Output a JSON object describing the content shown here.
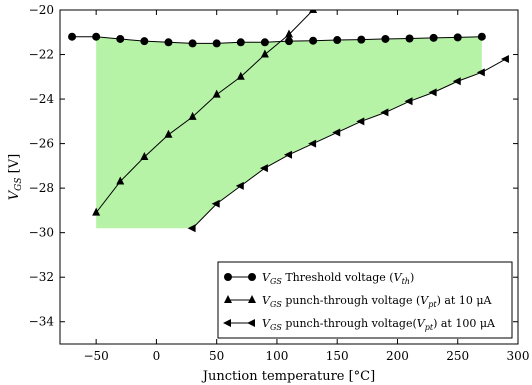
{
  "chart_data": {
    "type": "line",
    "xlabel": "Junction temperature [°C]",
    "ylabel": "V_GS [V]",
    "xlim": [
      -80,
      300
    ],
    "ylim": [
      -35,
      -20
    ],
    "x_ticks": [
      -50,
      0,
      50,
      100,
      150,
      200,
      250,
      300
    ],
    "y_ticks": [
      -20,
      -22,
      -24,
      -26,
      -28,
      -30,
      -32,
      -34
    ],
    "grid": false,
    "legend_position": "lower-right",
    "shaded_region": {
      "color": "#b6f3a6",
      "upper_boundary": {
        "x": [
          -50,
          -30,
          -10,
          10,
          30,
          50,
          70,
          90,
          110,
          130,
          150,
          170,
          190,
          210,
          230,
          250,
          270
        ],
        "y": [
          -21.2,
          -21.3,
          -21.4,
          -21.45,
          -21.5,
          -21.5,
          -21.45,
          -21.45,
          -21.4,
          -21.38,
          -21.35,
          -21.33,
          -21.3,
          -21.28,
          -21.25,
          -21.23,
          -21.2
        ]
      },
      "lower_boundary": {
        "x": [
          -50,
          30,
          50,
          70,
          90,
          110,
          130,
          150,
          170,
          190,
          210,
          230,
          250,
          270
        ],
        "y": [
          -29.8,
          -29.8,
          -28.7,
          -27.9,
          -27.1,
          -26.5,
          -26.0,
          -25.5,
          -25.0,
          -24.6,
          -24.1,
          -23.7,
          -23.2,
          -22.8
        ]
      }
    },
    "series": [
      {
        "name": "V_GS Threshold voltage (V_th)",
        "marker": "circle",
        "x": [
          -70,
          -50,
          -30,
          -10,
          10,
          30,
          50,
          70,
          90,
          110,
          130,
          150,
          170,
          190,
          210,
          230,
          250,
          270
        ],
        "y": [
          -21.2,
          -21.2,
          -21.3,
          -21.4,
          -21.45,
          -21.5,
          -21.5,
          -21.45,
          -21.45,
          -21.4,
          -21.38,
          -21.35,
          -21.33,
          -21.3,
          -21.28,
          -21.25,
          -21.23,
          -21.2
        ]
      },
      {
        "name": "V_GS punch-through voltage (V_pt) at 10 μA",
        "marker": "triangle-up",
        "x": [
          -50,
          -30,
          -10,
          10,
          30,
          50,
          70,
          90,
          110,
          130
        ],
        "y": [
          -29.1,
          -27.7,
          -26.6,
          -25.6,
          -24.8,
          -23.8,
          -23.0,
          -22.0,
          -21.1,
          -20.0
        ]
      },
      {
        "name": "V_GS punch-through voltage(V_pt) at 100 μA",
        "marker": "triangle-left",
        "x": [
          30,
          50,
          70,
          90,
          110,
          130,
          150,
          170,
          190,
          210,
          230,
          250,
          270,
          290
        ],
        "y": [
          -29.8,
          -28.7,
          -27.9,
          -27.1,
          -26.5,
          -26.0,
          -25.5,
          -25.0,
          -24.6,
          -24.1,
          -23.7,
          -23.2,
          -22.8,
          -22.2
        ]
      }
    ],
    "legend": {
      "items": [
        {
          "main": "V",
          "sub": "GS",
          "text": " Threshold voltage (",
          "var": "V",
          "varsub": "th",
          "tail": ")"
        },
        {
          "main": "V",
          "sub": "GS",
          "text": " punch-through voltage (",
          "var": "V",
          "varsub": "pt",
          "tail": ") at 10 μA"
        },
        {
          "main": "V",
          "sub": "GS",
          "text": " punch-through voltage(",
          "var": "V",
          "varsub": "pt",
          "tail": ") at 100 μA"
        }
      ]
    }
  }
}
